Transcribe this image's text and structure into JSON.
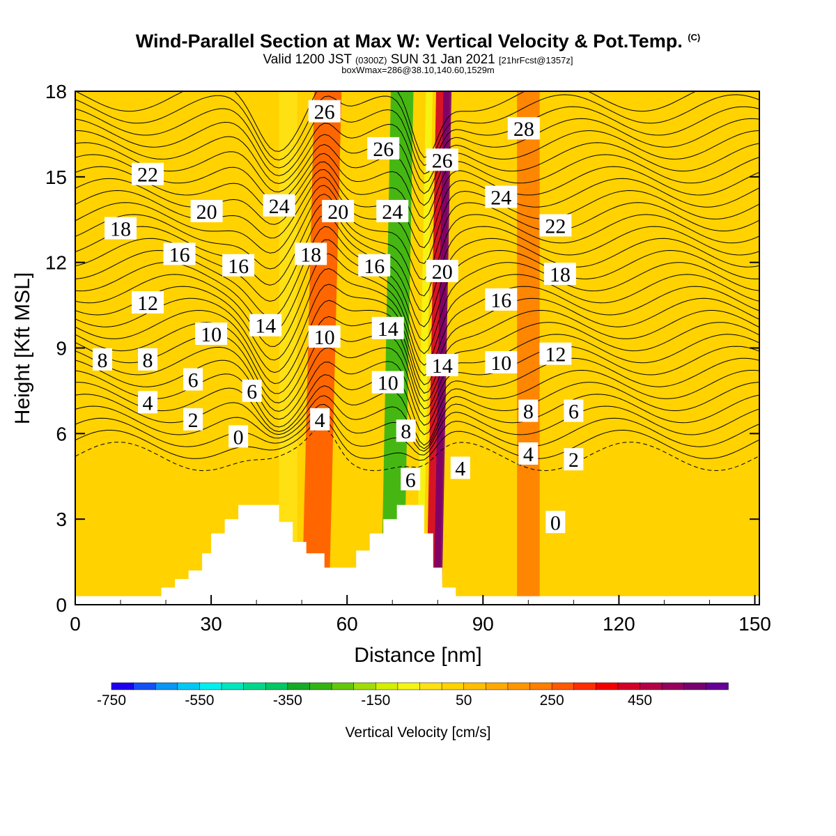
{
  "title": {
    "main": "Wind-Parallel Section at Max W: Vertical Velocity & Pot.Temp.",
    "units_tag": "(C)",
    "valid_prefix": "Valid 1200 JST",
    "valid_utc": "(0300Z)",
    "valid_date": "SUN 31 Jan 2021",
    "forecast": "[21hrFcst@1357z]",
    "box_info": "boxWmax=286@38.10,140.60,1529m"
  },
  "chart_data": {
    "type": "heatmap",
    "xlabel": "Distance [nm]",
    "ylabel": "Height [Kft MSL]",
    "xlim": [
      0,
      151
    ],
    "ylim": [
      0,
      18
    ],
    "x_ticks": [
      "0",
      "30",
      "60",
      "90",
      "120",
      "150"
    ],
    "y_ticks": [
      "0",
      "3",
      "6",
      "9",
      "12",
      "15",
      "18"
    ],
    "colorbar": {
      "label": "Vertical Velocity [cm/s]",
      "tick_labels": [
        "-750",
        "-550",
        "-350",
        "-150",
        "50",
        "250",
        "450"
      ],
      "colors": [
        "#1e00f0",
        "#1450f5",
        "#0a96f5",
        "#00c8f5",
        "#00f0f0",
        "#00e6be",
        "#00d78c",
        "#00c864",
        "#14aa28",
        "#32b414",
        "#64c80a",
        "#a0dc0a",
        "#d2f000",
        "#f5f514",
        "#ffe114",
        "#ffd200",
        "#ffbe00",
        "#ffaa00",
        "#ff9600",
        "#ff7d00",
        "#ff5a00",
        "#ff2d00",
        "#f50000",
        "#d20028",
        "#b40046",
        "#96005f",
        "#78006e",
        "#640096"
      ]
    },
    "terrain": [
      [
        0,
        0.3
      ],
      [
        19,
        0.3
      ],
      [
        19,
        0.6
      ],
      [
        22,
        0.6
      ],
      [
        22,
        0.9
      ],
      [
        25,
        0.9
      ],
      [
        25,
        1.2
      ],
      [
        28,
        1.2
      ],
      [
        28,
        1.8
      ],
      [
        30,
        1.8
      ],
      [
        30,
        2.5
      ],
      [
        33,
        2.5
      ],
      [
        33,
        3.0
      ],
      [
        36,
        3.0
      ],
      [
        36,
        3.5
      ],
      [
        45,
        3.5
      ],
      [
        45,
        2.9
      ],
      [
        48,
        2.9
      ],
      [
        48,
        2.2
      ],
      [
        51,
        2.2
      ],
      [
        51,
        1.8
      ],
      [
        55,
        1.8
      ],
      [
        55,
        1.3
      ],
      [
        62,
        1.3
      ],
      [
        62,
        1.9
      ],
      [
        65,
        1.9
      ],
      [
        65,
        2.5
      ],
      [
        68,
        2.5
      ],
      [
        68,
        3.0
      ],
      [
        71,
        3.0
      ],
      [
        71,
        3.5
      ],
      [
        77,
        3.5
      ],
      [
        77,
        2.5
      ],
      [
        79,
        2.5
      ],
      [
        79,
        1.3
      ],
      [
        81,
        1.3
      ],
      [
        81,
        0.6
      ],
      [
        84,
        0.6
      ],
      [
        84,
        0.3
      ],
      [
        151,
        0.3
      ]
    ],
    "vv_bands": [
      {
        "x": 47,
        "width": 4,
        "value": -100
      },
      {
        "x": 53,
        "width": 6,
        "value": 180
      },
      {
        "x": 70,
        "width": 5,
        "value": -330
      },
      {
        "x": 76,
        "width": 1.5,
        "value": -150
      },
      {
        "x": 79,
        "width": 3,
        "value": 280
      },
      {
        "x": 80,
        "width": 1.8,
        "value": 450
      },
      {
        "x": 100,
        "width": 5,
        "value": 100
      }
    ],
    "contour_labels": [
      {
        "text": "26",
        "x": 55,
        "y": 17.3
      },
      {
        "text": "26",
        "x": 68,
        "y": 16.0
      },
      {
        "text": "26",
        "x": 81,
        "y": 15.6
      },
      {
        "text": "28",
        "x": 99,
        "y": 16.7
      },
      {
        "text": "22",
        "x": 16,
        "y": 15.1
      },
      {
        "text": "24",
        "x": 45,
        "y": 14.0
      },
      {
        "text": "20",
        "x": 58,
        "y": 13.8
      },
      {
        "text": "24",
        "x": 70,
        "y": 13.8
      },
      {
        "text": "24",
        "x": 94,
        "y": 14.3
      },
      {
        "text": "20",
        "x": 29,
        "y": 13.8
      },
      {
        "text": "22",
        "x": 106,
        "y": 13.3
      },
      {
        "text": "18",
        "x": 10,
        "y": 13.2
      },
      {
        "text": "16",
        "x": 23,
        "y": 12.3
      },
      {
        "text": "16",
        "x": 36,
        "y": 11.9
      },
      {
        "text": "18",
        "x": 52,
        "y": 12.3
      },
      {
        "text": "16",
        "x": 66,
        "y": 11.9
      },
      {
        "text": "20",
        "x": 81,
        "y": 11.7
      },
      {
        "text": "18",
        "x": 107,
        "y": 11.6
      },
      {
        "text": "12",
        "x": 16,
        "y": 10.6
      },
      {
        "text": "16",
        "x": 94,
        "y": 10.7
      },
      {
        "text": "14",
        "x": 42,
        "y": 9.8
      },
      {
        "text": "10",
        "x": 30,
        "y": 9.5
      },
      {
        "text": "10",
        "x": 55,
        "y": 9.4
      },
      {
        "text": "14",
        "x": 69,
        "y": 9.7
      },
      {
        "text": "8",
        "x": 6,
        "y": 8.6
      },
      {
        "text": "8",
        "x": 16,
        "y": 8.6
      },
      {
        "text": "12",
        "x": 106,
        "y": 8.8
      },
      {
        "text": "10",
        "x": 94,
        "y": 8.5
      },
      {
        "text": "14",
        "x": 81,
        "y": 8.4
      },
      {
        "text": "6",
        "x": 26,
        "y": 7.9
      },
      {
        "text": "10",
        "x": 69,
        "y": 7.8
      },
      {
        "text": "6",
        "x": 39,
        "y": 7.5
      },
      {
        "text": "4",
        "x": 16,
        "y": 7.1
      },
      {
        "text": "8",
        "x": 100,
        "y": 6.8
      },
      {
        "text": "6",
        "x": 110,
        "y": 6.8
      },
      {
        "text": "2",
        "x": 26,
        "y": 6.5
      },
      {
        "text": "4",
        "x": 54,
        "y": 6.5
      },
      {
        "text": "8",
        "x": 73,
        "y": 6.1
      },
      {
        "text": "0",
        "x": 36,
        "y": 5.9
      },
      {
        "text": "4",
        "x": 100,
        "y": 5.3
      },
      {
        "text": "2",
        "x": 110,
        "y": 5.1
      },
      {
        "text": "4",
        "x": 85,
        "y": 4.8
      },
      {
        "text": "6",
        "x": 74,
        "y": 4.4
      },
      {
        "text": "0",
        "x": 106,
        "y": 2.9
      }
    ],
    "grid": false
  }
}
